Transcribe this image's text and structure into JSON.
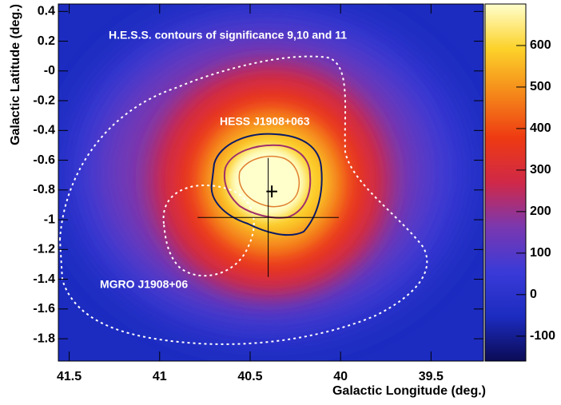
{
  "chart_data": {
    "type": "heatmap",
    "annotations": [
      "H.E.S.S. contours of significance 9,10 and 11",
      "HESS J1908+063",
      "MGRO J1908+06"
    ],
    "x_label": "Galactic Longitude (deg.)",
    "y_label": "Galactic Latitude (deg.)",
    "xlim": [
      41.56,
      39.21
    ],
    "xticks": [
      41.5,
      41,
      40.5,
      40,
      39.5
    ],
    "ylim": [
      -1.95,
      0.45
    ],
    "yticks": [
      0.4,
      0.2,
      {
        "value": 0,
        "label": "-0"
      },
      -0.2,
      -0.4,
      -0.6,
      -0.8,
      -1,
      -1.2,
      -1.4,
      -1.6,
      -1.8
    ],
    "zlim": [
      -160,
      700
    ],
    "zticks": [
      -100,
      0,
      100,
      200,
      300,
      400,
      500,
      600
    ],
    "colorscale": [
      "#0b0b55",
      "#1c2cc0",
      "#3a3ad8",
      "#7a38b0",
      "#d02848",
      "#ee3a12",
      "#f5891a",
      "#fcd22a",
      "#ffffcc"
    ],
    "markers": [
      {
        "x": 40.38,
        "y": -0.81,
        "xerr": 0.03,
        "yerr": 0.04
      },
      {
        "x": 40.4,
        "y": -0.985,
        "xerr": 0.39,
        "yerr": 0.4
      }
    ]
  }
}
